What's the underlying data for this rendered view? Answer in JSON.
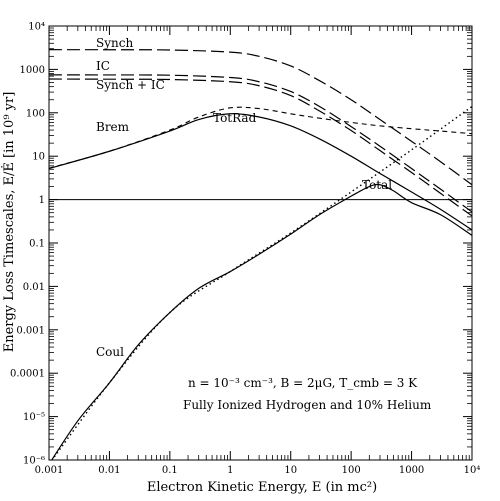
{
  "chart_data": {
    "type": "line",
    "xlabel": "Electron Kinetic Energy, E (in mc²)",
    "ylabel": "Energy Loss Timescales, E/Ė [in 10⁹ yr]",
    "xscale": "log",
    "yscale": "log",
    "xlim": [
      0.001,
      10000
    ],
    "ylim": [
      1e-06,
      10000
    ],
    "grid": false,
    "x_tick_labels": [
      "0.001",
      "0.01",
      "0.1",
      "1",
      "10",
      "100",
      "1000",
      "10⁴"
    ],
    "y_tick_labels": [
      "10⁻⁶",
      "10⁻⁵",
      "0.0001",
      "0.001",
      "0.01",
      "0.1",
      "1",
      "10",
      "100",
      "1000",
      "10⁴"
    ],
    "annotations": [
      "n = 10⁻³ cm⁻³, B = 2μG, T_cmb = 3 K",
      "Fully Ionized Hydrogen and 10% Helium"
    ],
    "series": [
      {
        "name": "Synch",
        "style": "long-dash",
        "x": [
          0.001,
          0.01,
          0.1,
          1,
          3,
          10,
          30,
          100,
          300,
          1000,
          3000,
          10000
        ],
        "y": [
          2850,
          2840,
          2800,
          2500,
          2000,
          1200,
          550,
          200,
          70,
          22,
          7.5,
          2.2
        ]
      },
      {
        "name": "IC",
        "style": "long-dash",
        "x": [
          0.001,
          0.01,
          0.1,
          1,
          3,
          10,
          30,
          100,
          300,
          1000,
          3000,
          10000
        ],
        "y": [
          750,
          745,
          735,
          650,
          520,
          310,
          140,
          48,
          17,
          5.2,
          1.75,
          0.52
        ]
      },
      {
        "name": "Synch + IC",
        "style": "long-dash",
        "x": [
          0.001,
          0.01,
          0.1,
          1,
          3,
          10,
          30,
          100,
          300,
          1000,
          3000,
          10000
        ],
        "y": [
          600,
          595,
          585,
          520,
          420,
          250,
          110,
          39,
          13.5,
          4.2,
          1.4,
          0.42
        ]
      },
      {
        "name": "Brem",
        "style": "short-dash",
        "x": [
          0.001,
          0.01,
          0.1,
          0.3,
          1,
          3,
          10,
          30,
          100,
          300,
          1000,
          3000,
          10000
        ],
        "y": [
          5.3,
          13,
          40,
          80,
          130,
          125,
          95,
          75,
          60,
          50,
          43,
          38,
          33
        ]
      },
      {
        "name": "Coul",
        "style": "dotted",
        "x": [
          0.001,
          0.01,
          0.1,
          1,
          10,
          100,
          1000,
          10000
        ],
        "y": [
          8e-07,
          6e-05,
          0.0025,
          0.022,
          0.17,
          1.5,
          14,
          140
        ]
      },
      {
        "name": "TotRad",
        "style": "solid",
        "x": [
          0.001,
          0.01,
          0.1,
          0.3,
          1,
          3,
          10,
          30,
          100,
          300,
          1000,
          3000,
          10000
        ],
        "y": [
          5.2,
          13,
          38,
          70,
          95,
          80,
          50,
          25,
          10,
          4,
          1.5,
          0.6,
          0.2
        ]
      },
      {
        "name": "Total",
        "style": "solid",
        "x": [
          0.001,
          0.003,
          0.01,
          0.03,
          0.1,
          0.3,
          1,
          3,
          10,
          30,
          100,
          200,
          300,
          500,
          1000,
          3000,
          10000
        ],
        "y": [
          8e-07,
          8e-06,
          6e-05,
          0.00045,
          0.0025,
          0.009,
          0.022,
          0.055,
          0.16,
          0.45,
          1.2,
          2.0,
          2.2,
          1.6,
          0.85,
          0.45,
          0.15
        ]
      },
      {
        "name": "",
        "style": "solid-thin",
        "x": [
          0.001,
          10000
        ],
        "y": [
          1,
          1
        ]
      }
    ]
  }
}
